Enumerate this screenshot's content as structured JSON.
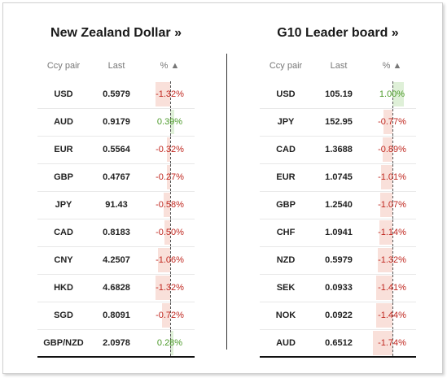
{
  "left": {
    "title": "New Zealand Dollar »",
    "headers": {
      "pair": "Ccy pair",
      "last": "Last",
      "pct": "% ▲"
    },
    "rows": [
      {
        "pair": "USD",
        "last": "0.5979",
        "pct": "-1.32%",
        "value": -1.32
      },
      {
        "pair": "AUD",
        "last": "0.9179",
        "pct": "0.39%",
        "value": 0.39
      },
      {
        "pair": "EUR",
        "last": "0.5564",
        "pct": "-0.32%",
        "value": -0.32
      },
      {
        "pair": "GBP",
        "last": "0.4767",
        "pct": "-0.27%",
        "value": -0.27
      },
      {
        "pair": "JPY",
        "last": "91.43",
        "pct": "-0.58%",
        "value": -0.58
      },
      {
        "pair": "CAD",
        "last": "0.8183",
        "pct": "-0.50%",
        "value": -0.5
      },
      {
        "pair": "CNY",
        "last": "4.2507",
        "pct": "-1.06%",
        "value": -1.06
      },
      {
        "pair": "HKD",
        "last": "4.6828",
        "pct": "-1.32%",
        "value": -1.32
      },
      {
        "pair": "SGD",
        "last": "0.8091",
        "pct": "-0.72%",
        "value": -0.72
      },
      {
        "pair": "GBP/NZD",
        "last": "2.0978",
        "pct": "0.28%",
        "value": 0.28
      }
    ]
  },
  "right": {
    "title": "G10 Leader board »",
    "headers": {
      "pair": "Ccy pair",
      "last": "Last",
      "pct": "% ▲"
    },
    "rows": [
      {
        "pair": "USD",
        "last": "105.19",
        "pct": "1.00%",
        "value": 1.0
      },
      {
        "pair": "JPY",
        "last": "152.95",
        "pct": "-0.77%",
        "value": -0.77
      },
      {
        "pair": "CAD",
        "last": "1.3688",
        "pct": "-0.89%",
        "value": -0.89
      },
      {
        "pair": "EUR",
        "last": "1.0745",
        "pct": "-1.01%",
        "value": -1.01
      },
      {
        "pair": "GBP",
        "last": "1.2540",
        "pct": "-1.07%",
        "value": -1.07
      },
      {
        "pair": "CHF",
        "last": "1.0941",
        "pct": "-1.14%",
        "value": -1.14
      },
      {
        "pair": "NZD",
        "last": "0.5979",
        "pct": "-1.32%",
        "value": -1.32
      },
      {
        "pair": "SEK",
        "last": "0.0933",
        "pct": "-1.41%",
        "value": -1.41
      },
      {
        "pair": "NOK",
        "last": "0.0922",
        "pct": "-1.44%",
        "value": -1.44
      },
      {
        "pair": "AUD",
        "last": "0.6512",
        "pct": "-1.74%",
        "value": -1.74
      }
    ]
  },
  "colors": {
    "negative": "#c0271f",
    "positive": "#4c9a2a",
    "neg_bar": "#f9e0da",
    "pos_bar": "#dff0d8"
  }
}
